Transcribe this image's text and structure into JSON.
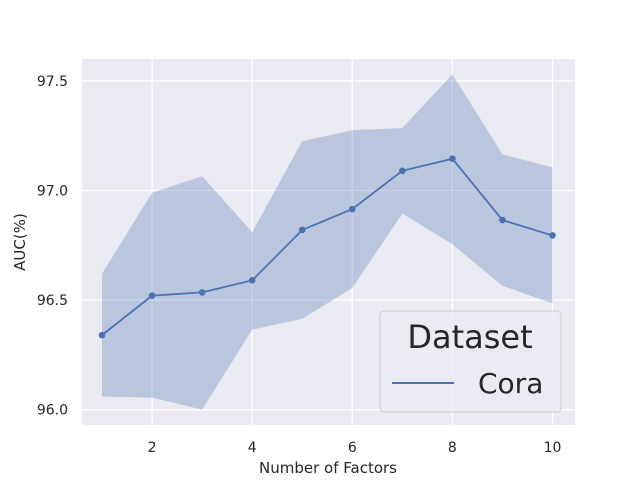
{
  "chart_data": {
    "type": "line",
    "xlabel": "Number of Factors",
    "ylabel": "AUC(%)",
    "xlim": [
      0.6,
      10.45
    ],
    "ylim": [
      95.93,
      97.6
    ],
    "x_ticks": [
      2,
      4,
      6,
      8,
      10
    ],
    "y_ticks": [
      96.0,
      96.5,
      97.0,
      97.5
    ],
    "x_tick_labels": [
      "2",
      "4",
      "6",
      "8",
      "10"
    ],
    "y_tick_labels": [
      "96.0",
      "96.5",
      "97.0",
      "97.5"
    ],
    "grid": true,
    "legend": {
      "title": "Dataset",
      "position": "bottom-right"
    },
    "series": [
      {
        "name": "Cora",
        "color": "#4c72b0",
        "x": [
          1,
          2,
          3,
          4,
          5,
          6,
          7,
          8,
          9,
          10
        ],
        "values": [
          96.34,
          96.52,
          96.535,
          96.59,
          96.82,
          96.915,
          97.09,
          97.145,
          96.865,
          96.795
        ],
        "band_upper": [
          96.62,
          96.99,
          97.065,
          96.81,
          97.225,
          97.275,
          97.285,
          97.53,
          97.165,
          97.105
        ],
        "band_lower": [
          96.06,
          96.055,
          96.0,
          96.365,
          96.415,
          96.555,
          96.895,
          96.755,
          96.565,
          96.485
        ]
      }
    ]
  }
}
